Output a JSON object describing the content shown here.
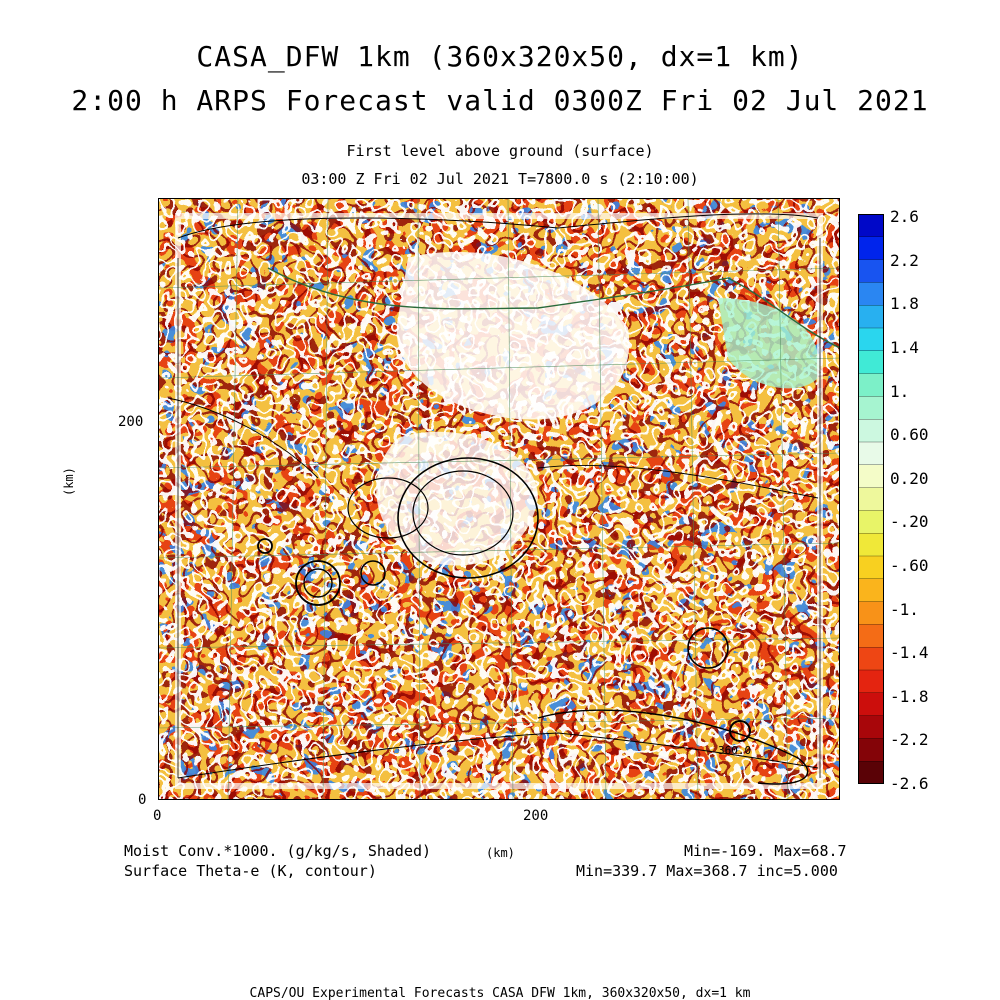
{
  "title": {
    "line1": "CASA_DFW 1km (360x320x50, dx=1 km)",
    "line2": "2:00 h ARPS Forecast valid 0300Z Fri 02 Jul 2021"
  },
  "subtitle": {
    "line1": "First level above ground (surface)",
    "line2": "03:00 Z Fri 02 Jul 2021   T=7800.0 s (2:10:00)"
  },
  "axes": {
    "ylabel": "(km)",
    "xlabel": "(km)",
    "y_ticks": [
      "200",
      "0"
    ],
    "x_ticks": [
      "0",
      "200"
    ]
  },
  "colorbar": {
    "labels": [
      "2.6",
      "2.2",
      "1.8",
      "1.4",
      "1.",
      "0.60",
      "0.20",
      "-.20",
      "-.60",
      "-1.",
      "-1.4",
      "-1.8",
      "-2.2",
      "-2.6"
    ],
    "colors": [
      "#0008c8",
      "#0024ec",
      "#1854f0",
      "#2a86f2",
      "#28b0f0",
      "#2ad6ee",
      "#40ead6",
      "#7cf0c8",
      "#a6f4d0",
      "#ccf8e0",
      "#e8fae8",
      "#f4fcc8",
      "#eef89c",
      "#e8f468",
      "#f0e838",
      "#f8d020",
      "#fab41c",
      "#f89218",
      "#f46c16",
      "#ee4614",
      "#e42410",
      "#cc0e0c",
      "#a8060a",
      "#840408",
      "#5a0206"
    ]
  },
  "map": {
    "contour_label": "360.0"
  },
  "stats": {
    "shaded_name": "Moist Conv.*1000. (g/kg/s, Shaded)",
    "contour_name": "Surface Theta-e (K, contour)",
    "shaded_range": "Min=-169. Max=68.7",
    "contour_range": "Min=339.7 Max=368.7 inc=5.000"
  },
  "footer": "CAPS/OU Experimental Forecasts  CASA DFW 1km, 360x320x50, dx=1 km"
}
